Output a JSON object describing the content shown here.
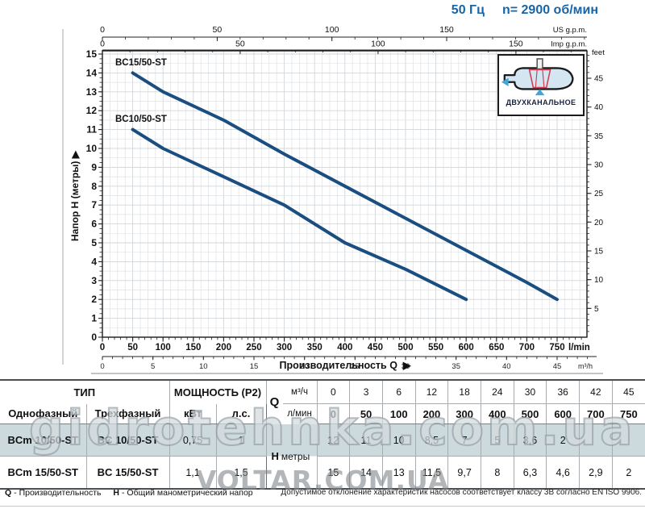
{
  "title": {
    "freq": "50 Гц",
    "speed": "n= 2900 об/мин"
  },
  "chart": {
    "y_title": "Напор H (метры)",
    "x_title": "Производительность Q",
    "inset_label": "ДВУХКАНАЛЬНОЕ",
    "colors": {
      "curve": "#1b4e80",
      "title_blue": "#1565a8",
      "grid": "#dfe2e5",
      "highlight_row": "#ccdade",
      "arrow_blue": "#44a5da",
      "impeller_red": "#cf3d4e"
    },
    "axes": {
      "us_gpm": {
        "label": "US g.p.m.",
        "ticks": [
          0,
          50,
          100,
          150
        ]
      },
      "imp_gpm": {
        "label": "Imp g.p.m.",
        "ticks": [
          0,
          50,
          100,
          150
        ]
      },
      "lmin": {
        "label": "l/min",
        "ticks": [
          0,
          50,
          100,
          150,
          200,
          250,
          300,
          350,
          400,
          450,
          500,
          550,
          600,
          650,
          700,
          750
        ]
      },
      "m3h": {
        "label": "m³/h",
        "ticks": [
          0,
          5,
          10,
          15,
          20,
          25,
          30,
          35,
          40,
          45
        ]
      },
      "feet": {
        "label": "feet",
        "ticks": [
          5,
          10,
          15,
          20,
          25,
          30,
          35,
          40,
          45
        ]
      },
      "meters": {
        "ticks": [
          0,
          1,
          2,
          3,
          4,
          5,
          6,
          7,
          8,
          9,
          10,
          11,
          12,
          13,
          14,
          15
        ]
      }
    }
  },
  "chart_data": {
    "type": "line",
    "title": "",
    "xlabel": "Производительность Q (l/min)",
    "ylabel": "Напор H (метры)",
    "xlim": [
      0,
      800
    ],
    "ylim": [
      0,
      15
    ],
    "grid": true,
    "legend_position": "inline-labels",
    "series": [
      {
        "name": "BC15/50-ST",
        "points": [
          [
            50,
            14
          ],
          [
            100,
            13
          ],
          [
            200,
            11.5
          ],
          [
            300,
            9.7
          ],
          [
            400,
            8
          ],
          [
            500,
            6.3
          ],
          [
            600,
            4.6
          ],
          [
            700,
            2.9
          ],
          [
            750,
            2
          ]
        ]
      },
      {
        "name": "BC10/50-ST",
        "points": [
          [
            50,
            11
          ],
          [
            100,
            10
          ],
          [
            200,
            8.5
          ],
          [
            300,
            7
          ],
          [
            400,
            5
          ],
          [
            500,
            3.6
          ],
          [
            600,
            2
          ]
        ]
      }
    ]
  },
  "table": {
    "type_header": "ТИП",
    "power_header": "МОЩНОСТЬ (P2)",
    "col_single": "Однофазный",
    "col_three": "Трехфазный",
    "col_kw": "кВт",
    "col_hp": "л.с.",
    "q_label": "Q",
    "q_m3h_label": "м³/ч",
    "q_lmin_label": "л/мин",
    "h_label": "H",
    "h_unit": "метры",
    "q_m3h": [
      "0",
      "3",
      "6",
      "12",
      "18",
      "24",
      "30",
      "36",
      "42",
      "45"
    ],
    "q_lmin": [
      "0",
      "50",
      "100",
      "200",
      "300",
      "400",
      "500",
      "600",
      "700",
      "750"
    ],
    "rows": [
      {
        "single": "BCm 10/50-ST",
        "three": "BC 10/50-ST",
        "kw": "0,75",
        "hp": "1",
        "h": [
          "12",
          "11",
          "10",
          "8,5",
          "7",
          "5",
          "3,6",
          "2",
          "",
          ""
        ],
        "highlight": true
      },
      {
        "single": "BCm 15/50-ST",
        "three": "BC 15/50-ST",
        "kw": "1,1",
        "hp": "1,5",
        "h": [
          "15",
          "14",
          "13",
          "11,5",
          "9,7",
          "8",
          "6,3",
          "4,6",
          "2,9",
          "2"
        ],
        "highlight": false
      }
    ]
  },
  "footer": {
    "q_term": "Q",
    "q_def": "- Производительность",
    "h_term": "H",
    "h_def": "- Общий манометрический напор",
    "tolerance": "Допустимое отклонение характеристик насосов соответствует классу 3В согласно EN ISO 9906."
  },
  "watermarks": {
    "overlay": "gidrotehnka.com.ua",
    "bottom": "VOLTAR.COM.UA"
  }
}
